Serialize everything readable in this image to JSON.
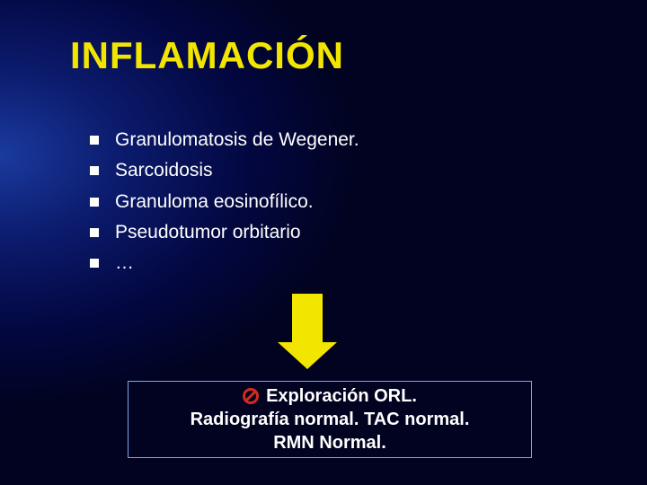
{
  "title": {
    "text": "INFLAMACIÓN",
    "color": "#f2e600",
    "fontsize": 42
  },
  "bullets": {
    "marker_color": "#ffffff",
    "text_color": "#ffffff",
    "fontsize": 21,
    "items": [
      "Granulomatosis de Wegener.",
      "Sarcoidosis",
      "Granuloma eosinofílico.",
      "Pseudotumor orbitario",
      "…"
    ]
  },
  "arrow": {
    "fill": "#f2e600",
    "border": "#000000"
  },
  "box": {
    "border_color": "#7fa6e8",
    "text_color": "#ffffff",
    "fontsize": 20,
    "icon_color": "#d42a1f",
    "line1": "Exploración ORL.",
    "line2": "Radiografía normal. TAC normal.",
    "line3": "RMN Normal."
  }
}
